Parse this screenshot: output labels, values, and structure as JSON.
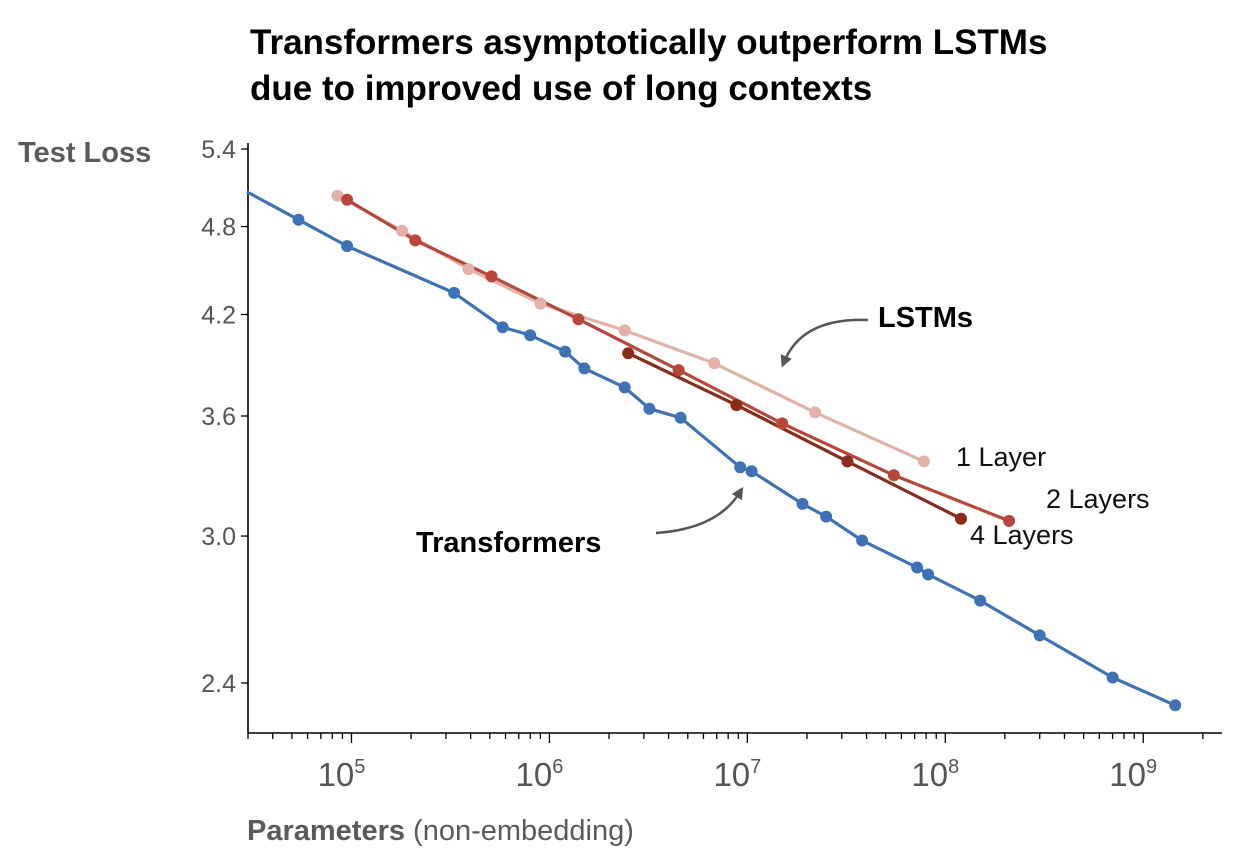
{
  "chart_data": {
    "type": "line",
    "title": "Transformers asymptotically outperform LSTMs due to improved use of long contexts",
    "title_lines": [
      "Transformers asymptotically outperform LSTMs",
      "due to improved use of long contexts"
    ],
    "ylabel": "Test Loss",
    "xlabel_bold": "Parameters",
    "xlabel_rest": " (non-embedding)",
    "x_scale": "log",
    "y_scale": "log",
    "xlim": [
      30000,
      2500000000
    ],
    "ylim": [
      2.2,
      5.4
    ],
    "yticks": [
      2.4,
      3.0,
      3.6,
      4.2,
      4.8,
      5.4
    ],
    "ytick_labels": [
      "2.4",
      "3.0",
      "3.6",
      "4.2",
      "4.8",
      "5.4"
    ],
    "xticks": [
      {
        "value": 100000,
        "base": "10",
        "exp": "5"
      },
      {
        "value": 1000000,
        "base": "10",
        "exp": "6"
      },
      {
        "value": 10000000,
        "base": "10",
        "exp": "7"
      },
      {
        "value": 100000000,
        "base": "10",
        "exp": "8"
      },
      {
        "value": 1000000000,
        "base": "10",
        "exp": "9"
      }
    ],
    "grid": false,
    "series": [
      {
        "name": "1 Layer",
        "color": "#e2b1a9",
        "x": [
          85000,
          180000,
          390000,
          900000,
          2400000,
          6800000,
          22000000,
          78000000
        ],
        "y": [
          5.03,
          4.77,
          4.5,
          4.27,
          4.1,
          3.9,
          3.62,
          3.36
        ]
      },
      {
        "name": "2 Layers",
        "color": "#b7473a",
        "x": [
          95000,
          210000,
          510000,
          1400000,
          4500000,
          15000000,
          55000000,
          210000000
        ],
        "y": [
          5.0,
          4.7,
          4.45,
          4.17,
          3.86,
          3.56,
          3.29,
          3.07
        ]
      },
      {
        "name": "4 Layers",
        "color": "#8b2b1a",
        "x": [
          2500000,
          8800000,
          32000000,
          120000000
        ],
        "y": [
          3.96,
          3.66,
          3.36,
          3.08
        ]
      },
      {
        "name": "Transformers",
        "color": "#3e72b4",
        "x": [
          54000,
          95000,
          330000,
          580000,
          800000,
          1200000,
          1500000,
          2400000,
          3200000,
          4600000,
          9200000,
          10500000,
          19000000,
          25000000,
          38000000,
          72000000,
          82000000,
          150000000,
          300000000,
          700000000,
          1450000000
        ],
        "y": [
          4.85,
          4.66,
          4.34,
          4.12,
          4.07,
          3.97,
          3.87,
          3.76,
          3.64,
          3.59,
          3.33,
          3.31,
          3.15,
          3.09,
          2.98,
          2.86,
          2.83,
          2.72,
          2.58,
          2.42,
          2.32
        ]
      }
    ],
    "annotations": {
      "lstms": "LSTMs",
      "transformers": "Transformers",
      "one_layer": "1 Layer",
      "two_layers": "2 Layers",
      "four_layers": "4 Layers"
    }
  }
}
